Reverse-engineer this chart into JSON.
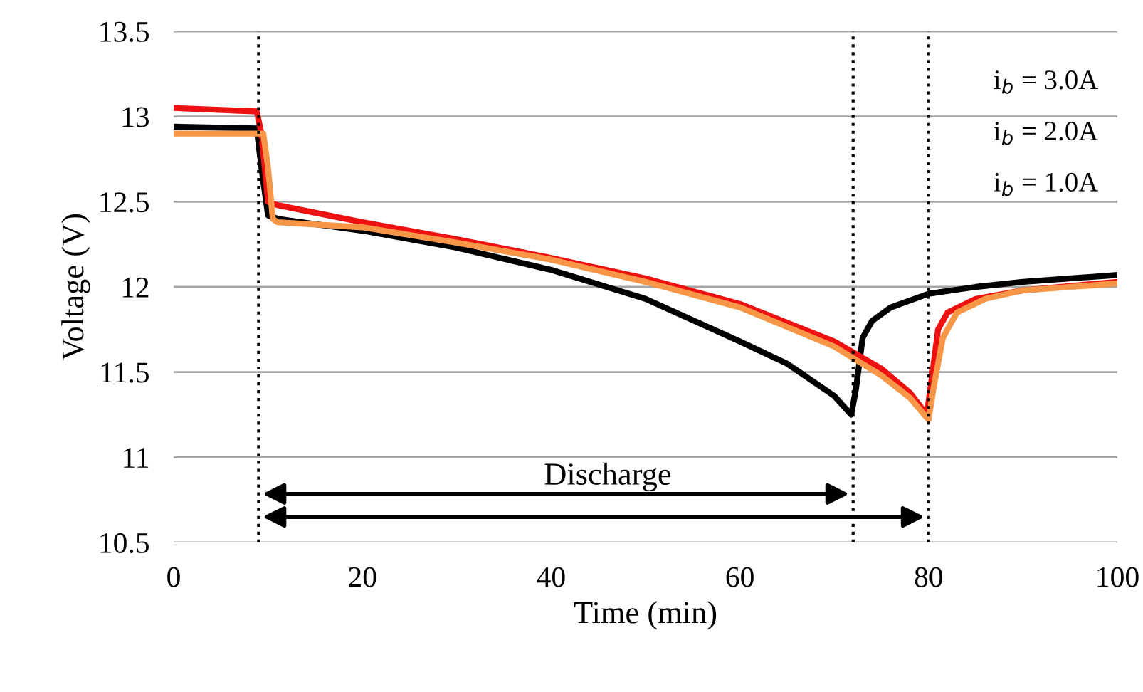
{
  "chart_data": {
    "type": "line",
    "xlabel": "Time (min)",
    "ylabel": "Voltage (V)",
    "xlim": [
      0,
      100
    ],
    "xticks": [
      0,
      20,
      40,
      60,
      80,
      100
    ],
    "ylim": [
      10.5,
      13.5
    ],
    "yticks": [
      10.5,
      11,
      11.5,
      12,
      12.5,
      13,
      13.5
    ],
    "grid": "y",
    "marker": "none",
    "line_style": "solid",
    "series": [
      {
        "color": "#000000",
        "x": [
          0,
          8.8,
          9.3,
          10,
          11,
          20,
          30,
          40,
          50,
          60,
          65,
          70,
          71.8,
          72.3,
          73,
          74,
          76,
          80,
          85,
          90,
          100
        ],
        "values": [
          12.94,
          12.93,
          12.7,
          12.42,
          12.4,
          12.33,
          12.23,
          12.1,
          11.93,
          11.68,
          11.55,
          11.36,
          11.25,
          11.4,
          11.7,
          11.8,
          11.88,
          11.96,
          12.0,
          12.03,
          12.07
        ]
      },
      {
        "color": "#ee1111",
        "x": [
          0,
          8.8,
          9.3,
          10,
          11,
          20,
          30,
          40,
          50,
          60,
          70,
          75,
          78,
          79.8,
          80.3,
          81,
          82,
          85,
          90,
          100
        ],
        "values": [
          13.05,
          13.03,
          12.9,
          12.5,
          12.48,
          12.38,
          12.28,
          12.17,
          12.05,
          11.9,
          11.68,
          11.52,
          11.38,
          11.25,
          11.45,
          11.75,
          11.85,
          11.93,
          11.98,
          12.03
        ]
      },
      {
        "color": "#f79646",
        "x": [
          0,
          9.5,
          10,
          10.5,
          11,
          20,
          30,
          40,
          50,
          60,
          70,
          75,
          78,
          80,
          80.5,
          81.5,
          83,
          86,
          90,
          100
        ],
        "values": [
          12.9,
          12.9,
          12.7,
          12.4,
          12.38,
          12.35,
          12.26,
          12.16,
          12.03,
          11.88,
          11.65,
          11.48,
          11.35,
          11.22,
          11.4,
          11.7,
          11.85,
          11.93,
          11.98,
          12.02
        ]
      }
    ],
    "ref_lines": [
      {
        "axis": "x",
        "value": 9,
        "line_style": "dotted",
        "color": "#000000"
      },
      {
        "axis": "x",
        "value": 72,
        "line_style": "dotted",
        "color": "#000000"
      },
      {
        "axis": "x",
        "value": 80,
        "line_style": "dotted",
        "color": "#000000"
      }
    ],
    "annotations": [
      "Discharge",
      "i$_{b}$ = 3.0A",
      "i$_{b}$ = 2.0A",
      "i$_{b}$ = 1.0A"
    ]
  }
}
